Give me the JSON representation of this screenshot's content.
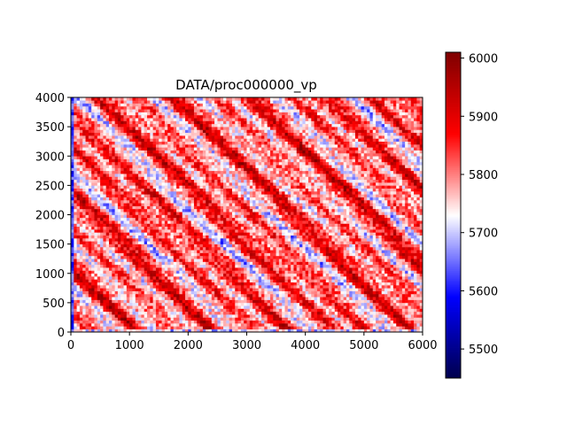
{
  "chart_data": {
    "type": "heatmap",
    "title": "DATA/proc000000_vp",
    "xlabel": "",
    "ylabel": "",
    "xlim": [
      0,
      6000
    ],
    "ylim": [
      0,
      4000
    ],
    "x_ticks": [
      0,
      1000,
      2000,
      3000,
      4000,
      5000,
      6000
    ],
    "y_ticks": [
      0,
      500,
      1000,
      1500,
      2000,
      2500,
      3000,
      3500,
      4000
    ],
    "colormap": "seismic",
    "colormap_colors": [
      "#00004c",
      "#0000ff",
      "#ffffff",
      "#ff0000",
      "#7f0000"
    ],
    "colorbar": {
      "min": 5450,
      "max": 6010,
      "ticks": [
        5500,
        5600,
        5700,
        5800,
        5900,
        6000
      ]
    },
    "field_description_grid": {
      "nx": 120,
      "ny": 80,
      "mean": 5810,
      "pattern": "diagonal striped random field, high values in red, low values in blue"
    },
    "grid": false
  }
}
